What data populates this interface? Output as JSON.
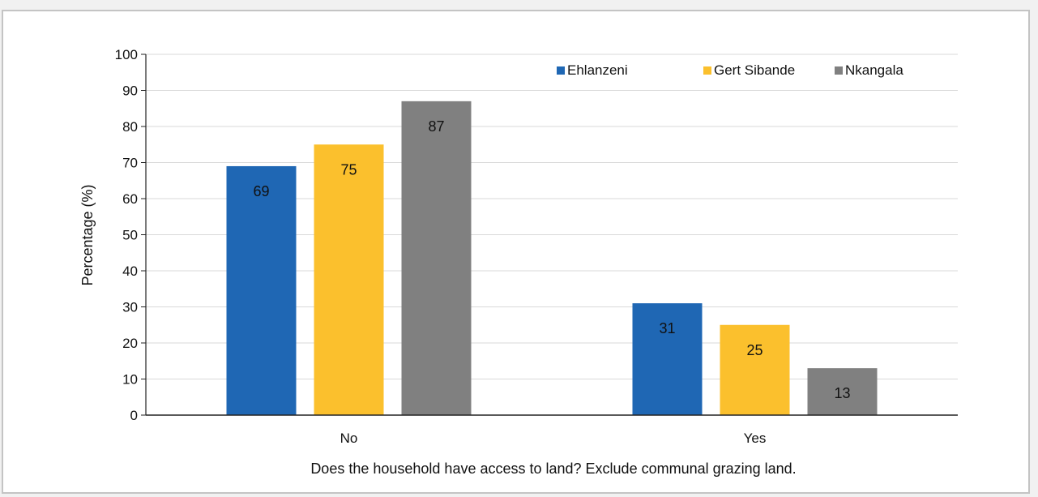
{
  "chart_data": {
    "type": "bar",
    "title": "",
    "xlabel": "Does the household have access to land? Exclude communal grazing land.",
    "ylabel": "Percentage (%)",
    "categories": [
      "No",
      "Yes"
    ],
    "ylim": [
      0,
      100
    ],
    "yticks": [
      0,
      10,
      20,
      30,
      40,
      50,
      60,
      70,
      80,
      90,
      100
    ],
    "grid": true,
    "legend_position": "top-right",
    "series": [
      {
        "name": "Ehlanzeni",
        "color": "#1f67b4",
        "values": [
          69,
          31
        ]
      },
      {
        "name": "Gert Sibande",
        "color": "#fbc02d",
        "values": [
          75,
          25
        ]
      },
      {
        "name": "Nkangala",
        "color": "#808080",
        "values": [
          87,
          13
        ]
      }
    ]
  }
}
